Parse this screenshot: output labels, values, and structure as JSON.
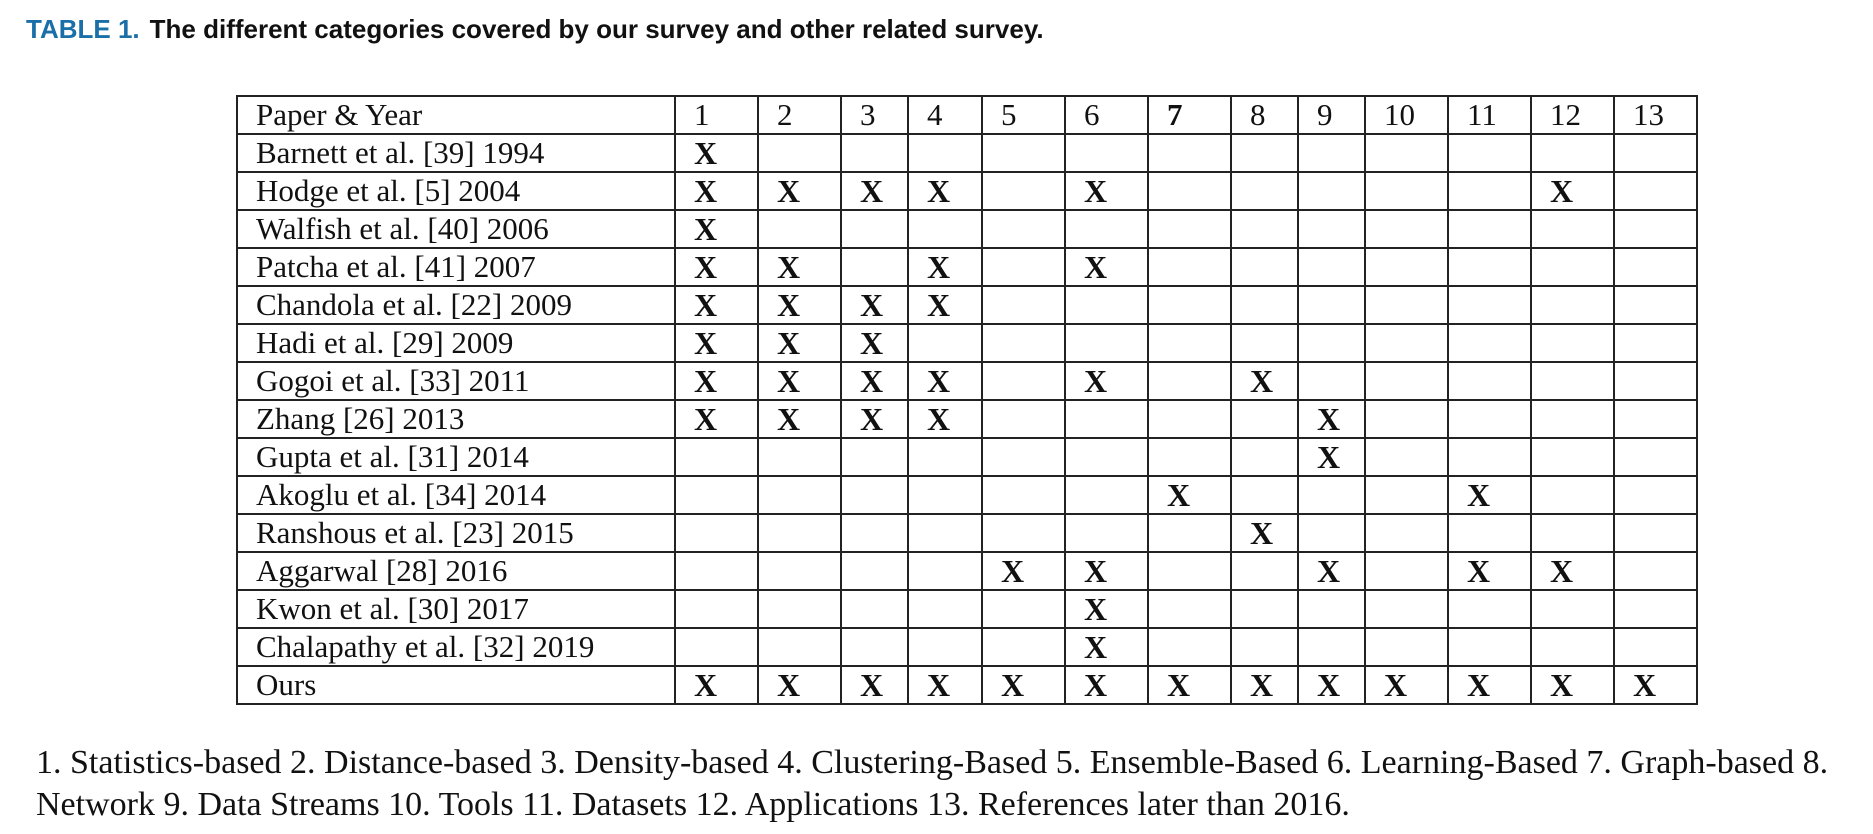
{
  "caption": {
    "label": "TABLE 1.",
    "text": "The different categories covered by our survey and other related survey."
  },
  "table": {
    "header": [
      "Paper & Year",
      "1",
      "2",
      "3",
      "4",
      "5",
      "6",
      "7",
      "8",
      "9",
      "10",
      "11",
      "12",
      "13"
    ],
    "rows": [
      {
        "paper": "Barnett et al. [39] 1994",
        "marks": [
          "X",
          "",
          "",
          "",
          "",
          "",
          "",
          "",
          "",
          "",
          "",
          "",
          ""
        ]
      },
      {
        "paper": "Hodge et al. [5] 2004",
        "marks": [
          "X",
          "X",
          "X",
          "X",
          "",
          "X",
          "",
          "",
          "",
          "",
          "",
          "X",
          ""
        ]
      },
      {
        "paper": "Walfish et al. [40] 2006",
        "marks": [
          "X",
          "",
          "",
          "",
          "",
          "",
          "",
          "",
          "",
          "",
          "",
          "",
          ""
        ]
      },
      {
        "paper": "Patcha et al. [41] 2007",
        "marks": [
          "X",
          "X",
          "",
          "X",
          "",
          "X",
          "",
          "",
          "",
          "",
          "",
          "",
          ""
        ]
      },
      {
        "paper": "Chandola et al.  [22] 2009",
        "marks": [
          "X",
          "X",
          "X",
          "X",
          "",
          "",
          "",
          "",
          "",
          "",
          "",
          "",
          ""
        ]
      },
      {
        "paper": "Hadi et al. [29] 2009",
        "marks": [
          "X",
          "X",
          "X",
          "",
          "",
          "",
          "",
          "",
          "",
          "",
          "",
          "",
          ""
        ]
      },
      {
        "paper": "Gogoi et al. [33] 2011",
        "marks": [
          "X",
          "X",
          "X",
          "X",
          "",
          "X",
          "",
          "X",
          "",
          "",
          "",
          "",
          ""
        ]
      },
      {
        "paper": "Zhang [26] 2013",
        "marks": [
          "X",
          "X",
          "X",
          "X",
          "",
          "",
          "",
          "",
          "X",
          "",
          "",
          "",
          ""
        ]
      },
      {
        "paper": "Gupta et al. [31] 2014",
        "marks": [
          "",
          "",
          "",
          "",
          "",
          "",
          "",
          "",
          "X",
          "",
          "",
          "",
          ""
        ]
      },
      {
        "paper": "Akoglu et al. [34] 2014",
        "marks": [
          "",
          "",
          "",
          "",
          "",
          "",
          "X",
          "",
          "",
          "",
          "X",
          "",
          ""
        ]
      },
      {
        "paper": "Ranshous et al. [23] 2015",
        "marks": [
          "",
          "",
          "",
          "",
          "",
          "",
          "",
          "X",
          "",
          "",
          "",
          "",
          ""
        ]
      },
      {
        "paper": "Aggarwal [28] 2016",
        "marks": [
          "",
          "",
          "",
          "",
          "X",
          "X",
          "",
          "",
          "X",
          "",
          "X",
          "X",
          ""
        ]
      },
      {
        "paper": "Kwon et al. [30] 2017",
        "marks": [
          "",
          "",
          "",
          "",
          "",
          "X",
          "",
          "",
          "",
          "",
          "",
          "",
          ""
        ]
      },
      {
        "paper": "Chalapathy et al. [32] 2019",
        "marks": [
          "",
          "",
          "",
          "",
          "",
          "X",
          "",
          "",
          "",
          "",
          "",
          "",
          ""
        ]
      },
      {
        "paper": "Ours",
        "marks": [
          "X",
          "X",
          "X",
          "X",
          "X",
          "X",
          "X",
          "X",
          "X",
          "X",
          "X",
          "X",
          "X"
        ]
      }
    ]
  },
  "footnote": "1. Statistics-based 2. Distance-based 3. Density-based 4. Clustering-Based 5. Ensemble-Based 6. Learning-Based 7. Graph-based 8. Network 9.  Data Streams 10.  Tools 11.  Datasets 12.  Applications 13.  References later than 2016."
}
